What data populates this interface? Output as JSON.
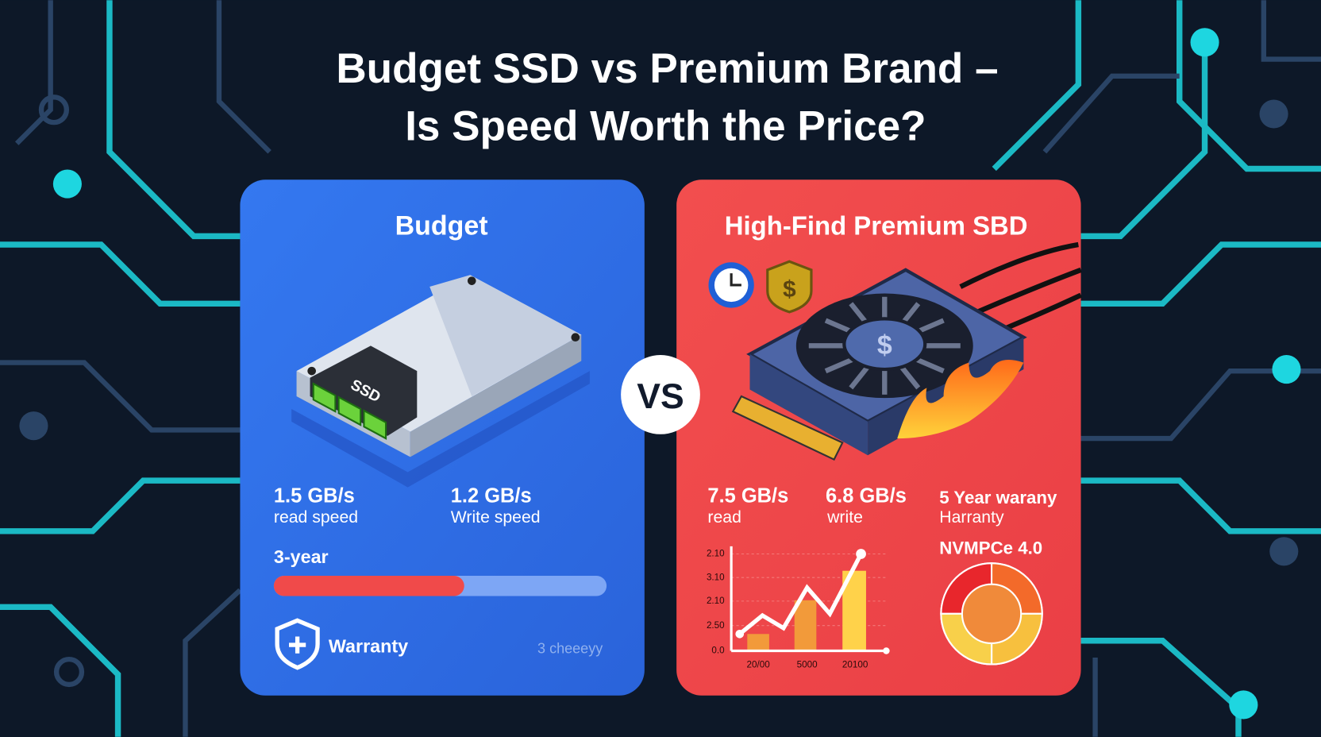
{
  "header": {
    "title_line1": "Budget SSD vs Premium Brand –",
    "title_line2": "Is Speed Worth the Price?"
  },
  "budget": {
    "heading": "Budget",
    "drive_label": "SSD",
    "read_value": "1.5 GB/s",
    "read_label": "read speed",
    "write_value": "1.2 GB/s",
    "write_label": "Write speed",
    "warranty_years": "3-year",
    "warranty": "Warranty",
    "footnote": "3 cheeeyy"
  },
  "versus": "VS",
  "premium": {
    "heading": "High-Find Premium SBD",
    "read_value": "7.5 GB/s",
    "read_label": "read",
    "write_value": "6.8 GB/s",
    "write_label": "write",
    "warranty_value": "5 Year warany",
    "warranty_label": "Harranty",
    "interface": "NVMPCe 4.0",
    "mini_chart": {
      "y_labels": [
        "2.10",
        "3.10",
        "2.10",
        "2.50",
        "0.0"
      ],
      "x_labels": [
        "20/00",
        "5000",
        "20100"
      ]
    }
  }
}
